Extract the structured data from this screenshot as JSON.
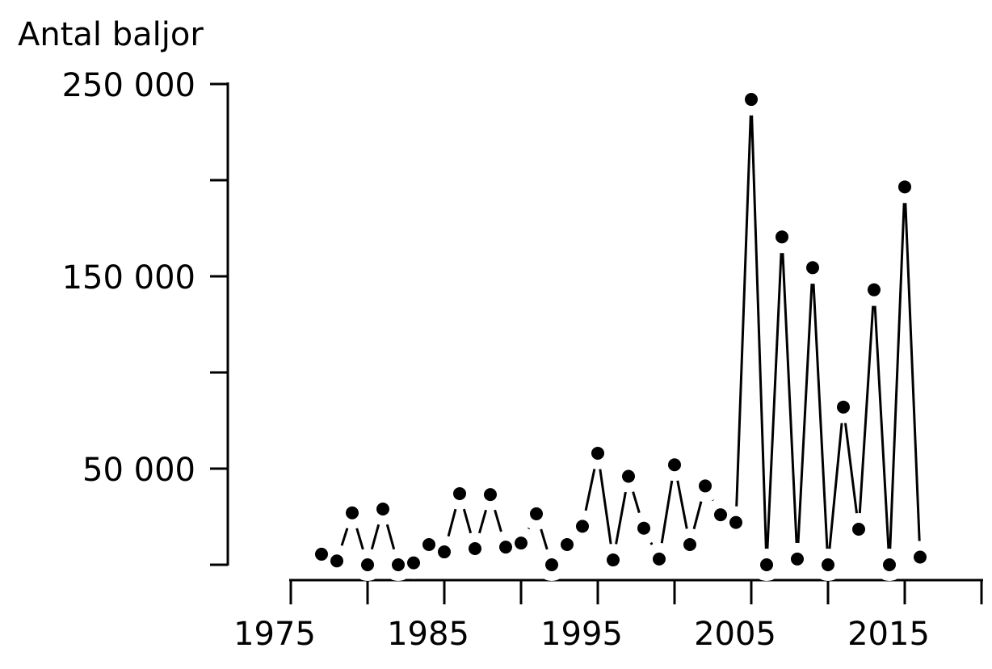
{
  "chart_data": {
    "type": "line",
    "y_label": "Antal baljor",
    "x": [
      1977,
      1978,
      1979,
      1980,
      1981,
      1982,
      1983,
      1984,
      1985,
      1986,
      1987,
      1988,
      1989,
      1990,
      1991,
      1992,
      1993,
      1994,
      1995,
      1996,
      1997,
      1998,
      1999,
      2000,
      2001,
      2002,
      2003,
      2004,
      2005,
      2006,
      2007,
      2008,
      2009,
      2010,
      2011,
      2012,
      2013,
      2014,
      2015,
      2016
    ],
    "values": [
      5500,
      2000,
      27000,
      0,
      29000,
      0,
      1000,
      10500,
      6700,
      37000,
      8400,
      36500,
      9200,
      11300,
      26500,
      0,
      10500,
      20000,
      58000,
      2500,
      46000,
      19000,
      3000,
      52000,
      10500,
      41000,
      26000,
      22000,
      242000,
      0,
      170500,
      3000,
      154500,
      0,
      82000,
      18500,
      143000,
      0,
      196500,
      4000
    ],
    "color": "#000000",
    "xlim": [
      1975,
      2020
    ],
    "xticks": [
      1975,
      1985,
      1995,
      2005,
      2015
    ],
    "xminor_ticks": [
      1980,
      1990,
      2000,
      2010,
      2020
    ],
    "ylim": [
      0,
      250000
    ],
    "yticks": [
      {
        "value": 50000,
        "label": "50 000"
      },
      {
        "value": 150000,
        "label": "150 000"
      },
      {
        "value": 250000,
        "label": "250 000"
      }
    ],
    "yminor_ticks": [
      0,
      100000,
      200000
    ]
  }
}
